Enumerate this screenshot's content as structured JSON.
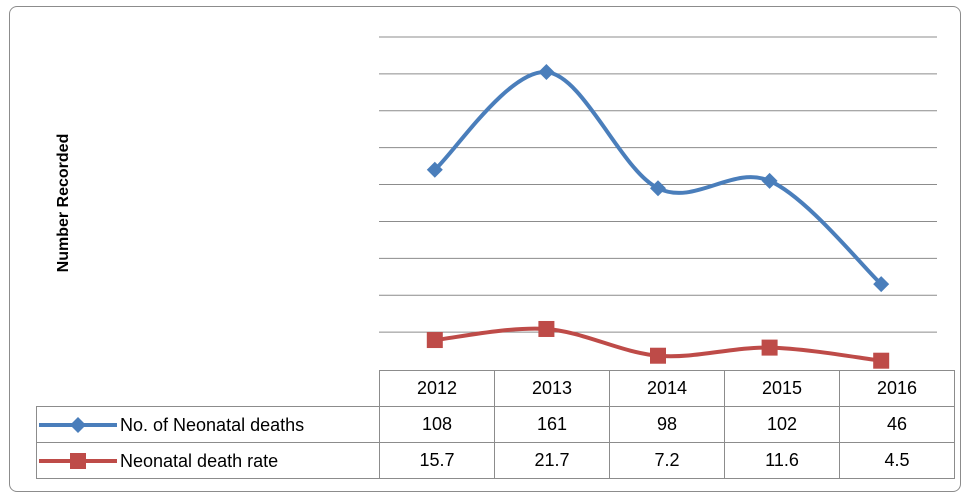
{
  "chart_data": {
    "type": "line",
    "ylabel": "Number Recorded",
    "categories": [
      "2012",
      "2013",
      "2014",
      "2015",
      "2016"
    ],
    "ylim": [
      0,
      180
    ],
    "y_major_unit": 20,
    "grid": true,
    "y_tick_labels_shown": false,
    "legend": "data-table",
    "series": [
      {
        "name": "No. of Neonatal deaths",
        "values": [
          108,
          161,
          98,
          102,
          46
        ],
        "display": [
          "108",
          "161",
          "98",
          "102",
          "46"
        ],
        "color": "#4a7ebb",
        "marker": "diamond"
      },
      {
        "name": "Neonatal death rate",
        "values": [
          15.7,
          21.7,
          7.2,
          11.6,
          4.5
        ],
        "display": [
          "15.7",
          "21.7",
          "7.2",
          "11.6",
          "4.5"
        ],
        "color": "#be4b48",
        "marker": "square"
      }
    ]
  }
}
